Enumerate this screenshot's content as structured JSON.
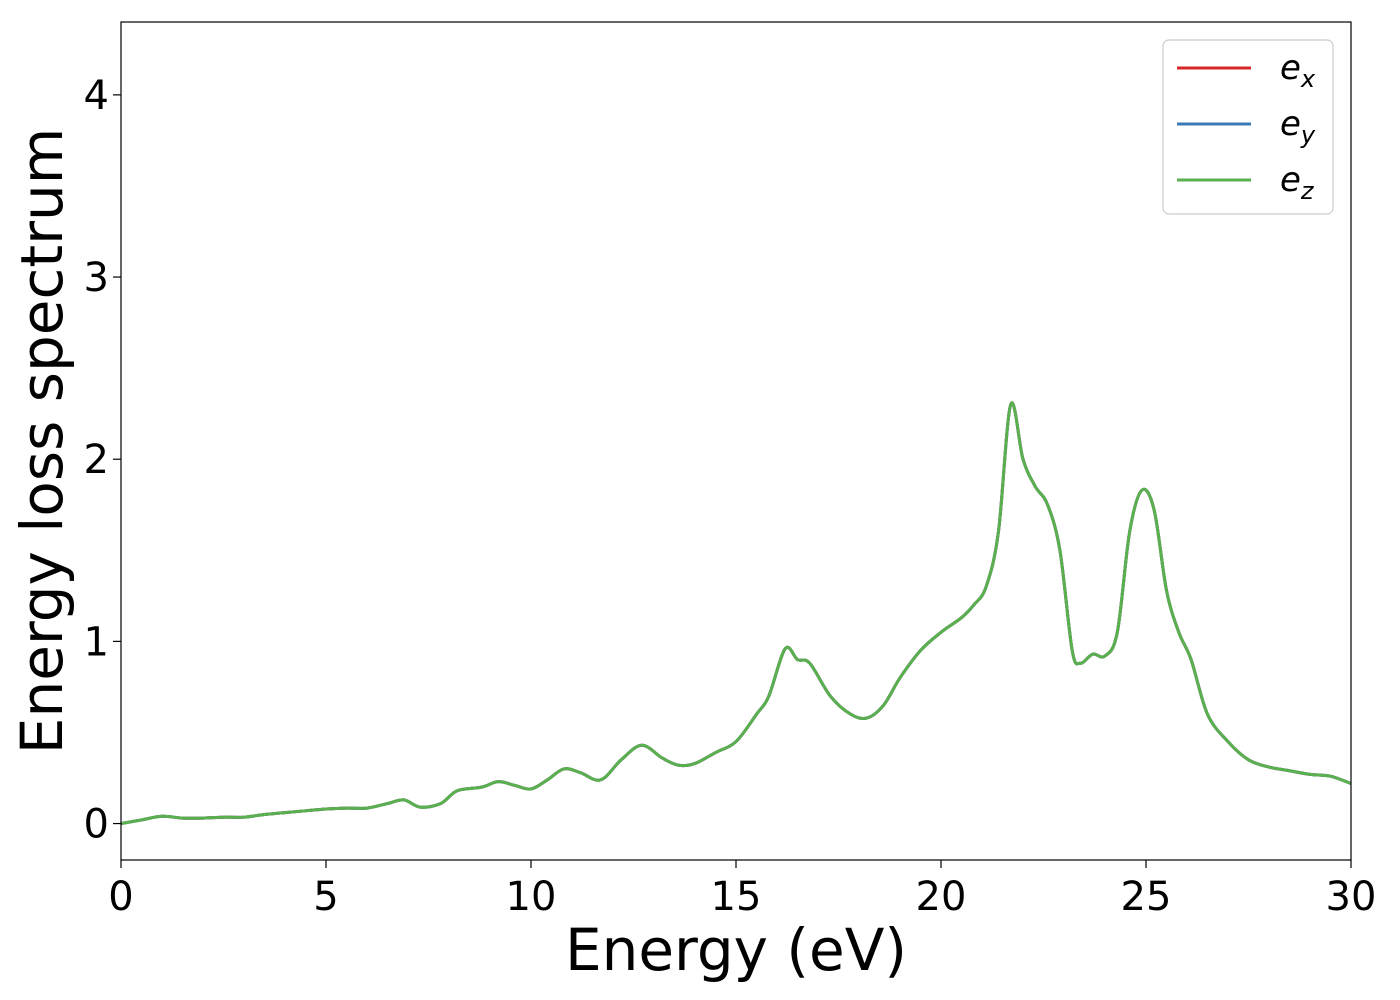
{
  "chart_data": {
    "type": "line",
    "xlabel": "Energy (eV)",
    "ylabel": "Energy loss spectrum",
    "xlim": [
      0,
      30
    ],
    "ylim": [
      -0.2,
      4.4
    ],
    "xticks": [
      0,
      5,
      10,
      15,
      20,
      25,
      30
    ],
    "yticks": [
      0,
      1,
      2,
      3,
      4
    ],
    "grid": false,
    "legend_position": "top-right",
    "x": [
      0,
      0.5,
      1.0,
      1.5,
      2.0,
      2.5,
      3.0,
      3.5,
      4.0,
      4.5,
      5.0,
      5.5,
      6.0,
      6.5,
      6.9,
      7.3,
      7.8,
      8.2,
      8.8,
      9.2,
      9.6,
      10.0,
      10.4,
      10.8,
      11.2,
      11.7,
      12.2,
      12.7,
      13.2,
      13.6,
      14.0,
      14.5,
      15.0,
      15.5,
      15.8,
      16.2,
      16.5,
      16.8,
      17.3,
      17.8,
      18.2,
      18.6,
      19.0,
      19.5,
      20.0,
      20.5,
      20.8,
      21.1,
      21.4,
      21.7,
      22.0,
      22.3,
      22.6,
      22.9,
      23.2,
      23.4,
      23.7,
      24.0,
      24.3,
      24.6,
      24.9,
      25.2,
      25.5,
      25.8,
      26.1,
      26.5,
      27.0,
      27.5,
      28.0,
      28.5,
      29.0,
      29.5,
      30.0
    ],
    "series": [
      {
        "name": "e_x",
        "color": "#d62728",
        "values": [
          0.0,
          0.02,
          0.04,
          0.03,
          0.03,
          0.035,
          0.035,
          0.05,
          0.06,
          0.07,
          0.08,
          0.085,
          0.085,
          0.11,
          0.13,
          0.09,
          0.11,
          0.18,
          0.2,
          0.23,
          0.21,
          0.19,
          0.24,
          0.3,
          0.28,
          0.24,
          0.35,
          0.43,
          0.36,
          0.32,
          0.33,
          0.39,
          0.45,
          0.6,
          0.7,
          0.96,
          0.9,
          0.88,
          0.7,
          0.6,
          0.58,
          0.65,
          0.8,
          0.95,
          1.05,
          1.13,
          1.2,
          1.3,
          1.6,
          2.3,
          2.0,
          1.85,
          1.75,
          1.5,
          0.95,
          0.88,
          0.93,
          0.92,
          1.05,
          1.6,
          1.83,
          1.72,
          1.28,
          1.05,
          0.9,
          0.6,
          0.45,
          0.35,
          0.31,
          0.29,
          0.27,
          0.26,
          0.22
        ]
      },
      {
        "name": "e_y",
        "color": "#3a7ab5",
        "values": [
          0.0,
          0.02,
          0.04,
          0.03,
          0.03,
          0.035,
          0.035,
          0.05,
          0.06,
          0.07,
          0.08,
          0.085,
          0.085,
          0.11,
          0.13,
          0.09,
          0.11,
          0.18,
          0.2,
          0.23,
          0.21,
          0.19,
          0.24,
          0.3,
          0.28,
          0.24,
          0.35,
          0.43,
          0.36,
          0.32,
          0.33,
          0.39,
          0.45,
          0.6,
          0.7,
          0.96,
          0.9,
          0.88,
          0.7,
          0.6,
          0.58,
          0.65,
          0.8,
          0.95,
          1.05,
          1.13,
          1.2,
          1.3,
          1.6,
          2.3,
          2.0,
          1.85,
          1.75,
          1.5,
          0.95,
          0.88,
          0.93,
          0.92,
          1.05,
          1.6,
          1.83,
          1.72,
          1.28,
          1.05,
          0.9,
          0.6,
          0.45,
          0.35,
          0.31,
          0.29,
          0.27,
          0.26,
          0.22
        ]
      },
      {
        "name": "e_z",
        "color": "#5aaf4f",
        "values": [
          0.0,
          0.02,
          0.04,
          0.03,
          0.03,
          0.035,
          0.035,
          0.05,
          0.06,
          0.07,
          0.08,
          0.085,
          0.085,
          0.11,
          0.13,
          0.09,
          0.11,
          0.18,
          0.2,
          0.23,
          0.21,
          0.19,
          0.24,
          0.3,
          0.28,
          0.24,
          0.35,
          0.43,
          0.36,
          0.32,
          0.33,
          0.39,
          0.45,
          0.6,
          0.7,
          0.96,
          0.9,
          0.88,
          0.7,
          0.6,
          0.58,
          0.65,
          0.8,
          0.95,
          1.05,
          1.13,
          1.2,
          1.3,
          1.6,
          2.3,
          2.0,
          1.85,
          1.75,
          1.5,
          0.95,
          0.88,
          0.93,
          0.92,
          1.05,
          1.6,
          1.83,
          1.72,
          1.28,
          1.05,
          0.9,
          0.6,
          0.45,
          0.35,
          0.31,
          0.29,
          0.27,
          0.26,
          0.22
        ]
      }
    ],
    "legend": [
      {
        "base": "e",
        "sub": "x",
        "color": "#d62728"
      },
      {
        "base": "e",
        "sub": "y",
        "color": "#3a7ab5"
      },
      {
        "base": "e",
        "sub": "z",
        "color": "#5aaf4f"
      }
    ]
  }
}
